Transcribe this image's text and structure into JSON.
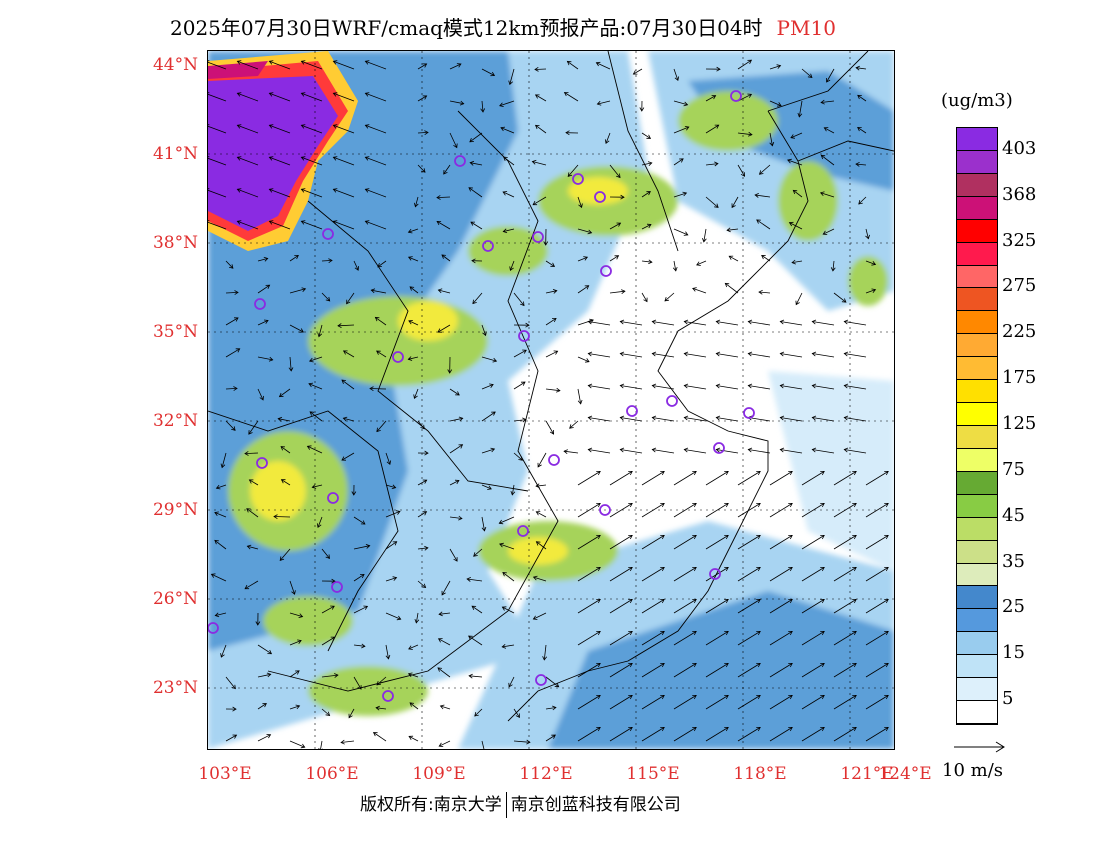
{
  "header": {
    "title": "2025年07月30日WRF/cmaq模式12km预报产品:07月30日04时",
    "pollutant": "PM10"
  },
  "axes": {
    "lat_labels": [
      "44°N",
      "41°N",
      "38°N",
      "35°N",
      "32°N",
      "29°N",
      "26°N",
      "23°N"
    ],
    "lon_labels": [
      "103°E",
      "106°E",
      "109°E",
      "112°E",
      "115°E",
      "118°E",
      "121°E",
      "124°E"
    ]
  },
  "legend": {
    "unit": "(ug/m3)",
    "levels": [
      "403",
      "368",
      "325",
      "275",
      "225",
      "175",
      "125",
      "75",
      "45",
      "35",
      "25",
      "15",
      "5"
    ],
    "colors": [
      "#8a2be2",
      "#9b30cc",
      "#b03060",
      "#cc1177",
      "#ff0000",
      "#ff1a4d",
      "#ff6666",
      "#ee5522",
      "#ff8800",
      "#ffaa33",
      "#ffbb33",
      "#ffe000",
      "#ffff00",
      "#eedd44",
      "#eeff66",
      "#66aa33",
      "#88cc44",
      "#bbdd66",
      "#cce088",
      "#ddecbb",
      "#4488cc",
      "#5599dd",
      "#99ccee",
      "#bfe3f7",
      "#ddf0fb",
      "#ffffff"
    ],
    "vector_ref": "10 m/s"
  },
  "footer": {
    "left": "版权所有:南京大学",
    "right": "南京创蓝科技有限公司"
  },
  "map_colors": {
    "water": "#4a8fd0",
    "light_blue": "#a8d4f2",
    "pale_blue": "#d6ecfa",
    "green": "#a6d35a",
    "yellow": "#f2ea3d",
    "purple": "#8a2be2",
    "red": "#ff2a2a",
    "station": "#8a2be2"
  }
}
